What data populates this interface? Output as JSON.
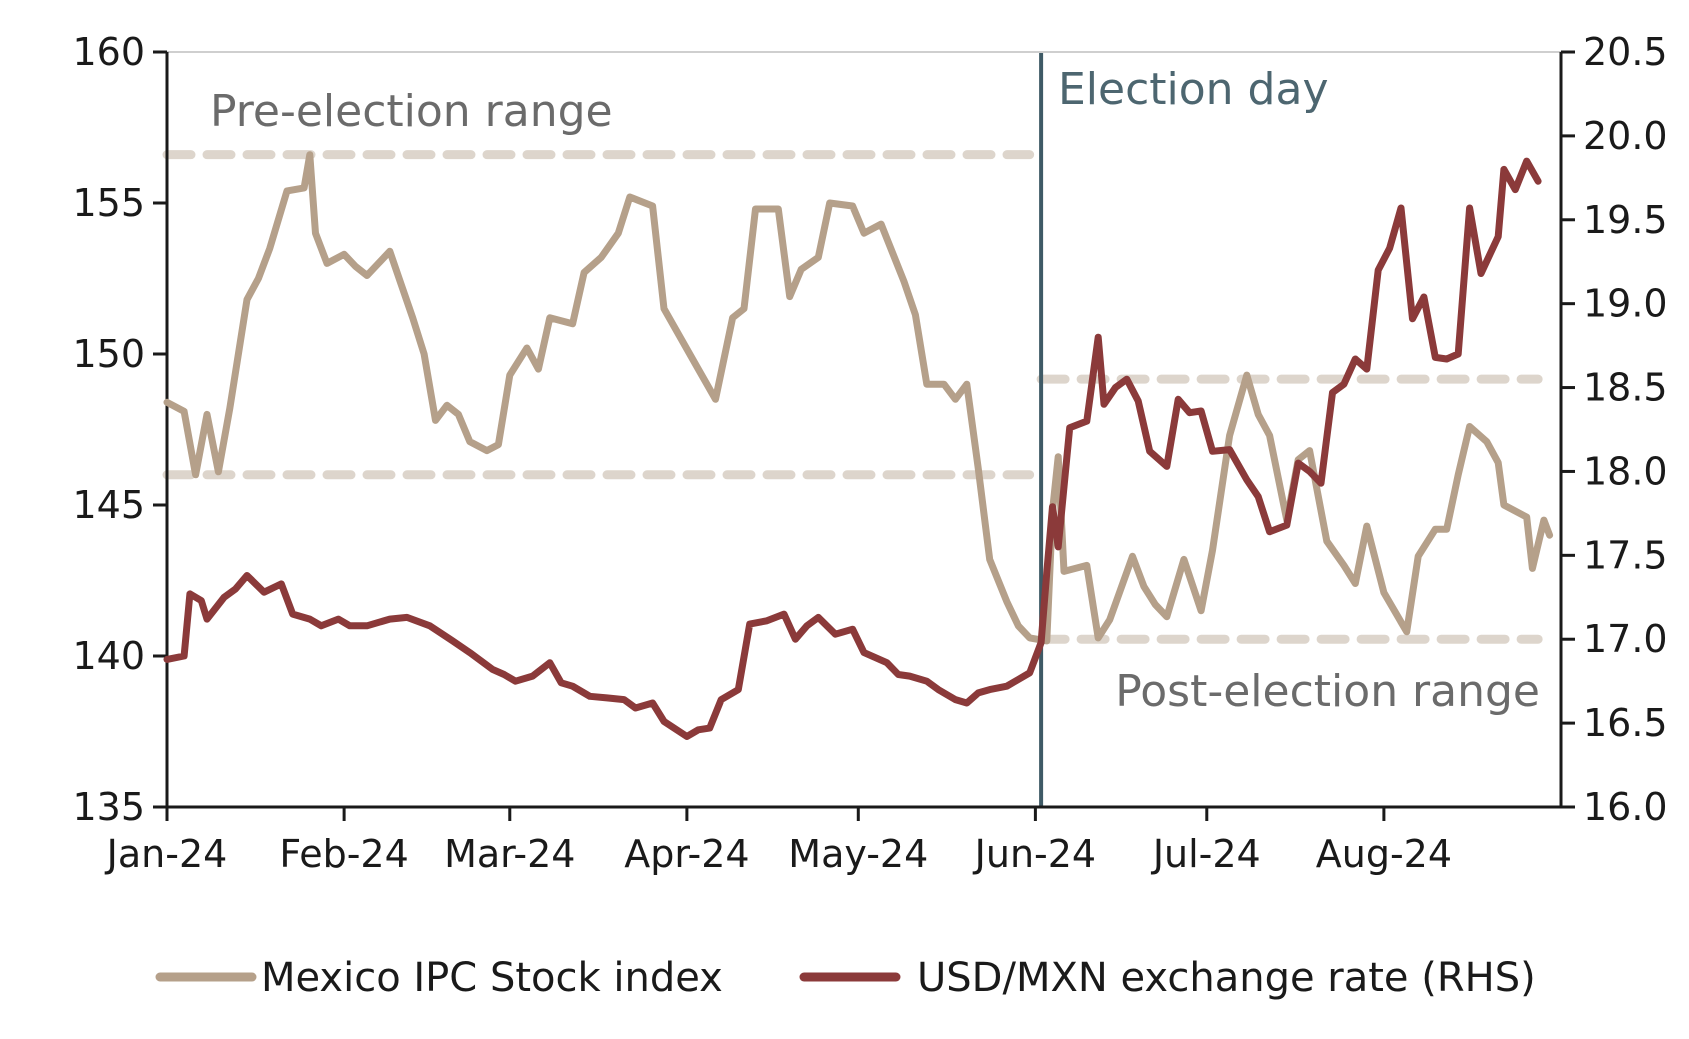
{
  "chart_data": {
    "type": "line",
    "x_labels": [
      "Jan-24",
      "Feb-24",
      "Mar-24",
      "Apr-24",
      "May-24",
      "Jun-24",
      "Jul-24",
      "Aug-24"
    ],
    "y_left": {
      "min": 135,
      "max": 160,
      "ticks": [
        "135",
        "140",
        "145",
        "150",
        "155",
        "160"
      ]
    },
    "y_right": {
      "min": 16.0,
      "max": 20.5,
      "ticks": [
        "16.0",
        "16.5",
        "17.0",
        "17.5",
        "18.0",
        "18.5",
        "19.0",
        "19.5",
        "20.0",
        "20.5"
      ]
    },
    "annotations": {
      "pre_election": "Pre-election range",
      "election_day": "Election day",
      "post_election": "Post-election range"
    },
    "series": [
      {
        "name": "Mexico IPC Stock index",
        "axis": "left",
        "color": "#b5a08a",
        "points": [
          [
            "2024-01-01",
            148.4
          ],
          [
            "2024-01-04",
            148.1
          ],
          [
            "2024-01-06",
            146.0
          ],
          [
            "2024-01-08",
            148.0
          ],
          [
            "2024-01-10",
            146.1
          ],
          [
            "2024-01-12",
            148.2
          ],
          [
            "2024-01-15",
            151.8
          ],
          [
            "2024-01-17",
            152.5
          ],
          [
            "2024-01-19",
            153.5
          ],
          [
            "2024-01-22",
            155.4
          ],
          [
            "2024-01-25",
            155.5
          ],
          [
            "2024-01-26",
            156.6
          ],
          [
            "2024-01-27",
            154.0
          ],
          [
            "2024-01-29",
            153.0
          ],
          [
            "2024-02-01",
            153.3
          ],
          [
            "2024-02-03",
            152.9
          ],
          [
            "2024-02-05",
            152.6
          ],
          [
            "2024-02-07",
            153.0
          ],
          [
            "2024-02-09",
            153.4
          ],
          [
            "2024-02-11",
            152.3
          ],
          [
            "2024-02-13",
            151.2
          ],
          [
            "2024-02-15",
            150.0
          ],
          [
            "2024-02-17",
            147.8
          ],
          [
            "2024-02-19",
            148.3
          ],
          [
            "2024-02-21",
            148.0
          ],
          [
            "2024-02-23",
            147.1
          ],
          [
            "2024-02-26",
            146.8
          ],
          [
            "2024-02-28",
            147.0
          ],
          [
            "2024-03-01",
            149.3
          ],
          [
            "2024-03-04",
            150.2
          ],
          [
            "2024-03-06",
            149.5
          ],
          [
            "2024-03-08",
            151.2
          ],
          [
            "2024-03-12",
            151.0
          ],
          [
            "2024-03-14",
            152.7
          ],
          [
            "2024-03-17",
            153.2
          ],
          [
            "2024-03-20",
            154.0
          ],
          [
            "2024-03-22",
            155.2
          ],
          [
            "2024-03-26",
            154.9
          ],
          [
            "2024-03-28",
            151.5
          ],
          [
            "2024-04-03",
            149.5
          ],
          [
            "2024-04-06",
            148.5
          ],
          [
            "2024-04-09",
            151.2
          ],
          [
            "2024-04-11",
            151.5
          ],
          [
            "2024-04-13",
            154.8
          ],
          [
            "2024-04-17",
            154.8
          ],
          [
            "2024-04-19",
            151.9
          ],
          [
            "2024-04-21",
            152.8
          ],
          [
            "2024-04-24",
            153.2
          ],
          [
            "2024-04-26",
            155.0
          ],
          [
            "2024-04-30",
            154.9
          ],
          [
            "2024-05-02",
            154.0
          ],
          [
            "2024-05-05",
            154.3
          ],
          [
            "2024-05-09",
            152.4
          ],
          [
            "2024-05-11",
            151.3
          ],
          [
            "2024-05-13",
            149.0
          ],
          [
            "2024-05-16",
            149.0
          ],
          [
            "2024-05-18",
            148.5
          ],
          [
            "2024-05-20",
            149.0
          ],
          [
            "2024-05-22",
            146.2
          ],
          [
            "2024-05-24",
            143.2
          ],
          [
            "2024-05-27",
            141.8
          ],
          [
            "2024-05-29",
            141.0
          ],
          [
            "2024-05-31",
            140.6
          ],
          [
            "2024-06-03",
            140.5
          ],
          [
            "2024-06-04",
            144.8
          ],
          [
            "2024-06-05",
            146.6
          ],
          [
            "2024-06-06",
            142.8
          ],
          [
            "2024-06-10",
            143.0
          ],
          [
            "2024-06-12",
            140.6
          ],
          [
            "2024-06-14",
            141.2
          ],
          [
            "2024-06-18",
            143.3
          ],
          [
            "2024-06-20",
            142.3
          ],
          [
            "2024-06-22",
            141.7
          ],
          [
            "2024-06-24",
            141.3
          ],
          [
            "2024-06-27",
            143.2
          ],
          [
            "2024-06-30",
            141.5
          ],
          [
            "2024-07-02",
            143.5
          ],
          [
            "2024-07-05",
            147.3
          ],
          [
            "2024-07-08",
            149.3
          ],
          [
            "2024-07-10",
            148.0
          ],
          [
            "2024-07-12",
            147.3
          ],
          [
            "2024-07-15",
            144.5
          ],
          [
            "2024-07-17",
            146.5
          ],
          [
            "2024-07-19",
            146.8
          ],
          [
            "2024-07-22",
            143.8
          ],
          [
            "2024-07-25",
            143.0
          ],
          [
            "2024-07-27",
            142.4
          ],
          [
            "2024-07-29",
            144.3
          ],
          [
            "2024-08-01",
            142.1
          ],
          [
            "2024-08-05",
            140.8
          ],
          [
            "2024-08-07",
            143.3
          ],
          [
            "2024-08-10",
            144.2
          ],
          [
            "2024-08-12",
            144.2
          ],
          [
            "2024-08-14",
            146.0
          ],
          [
            "2024-08-16",
            147.6
          ],
          [
            "2024-08-19",
            147.1
          ],
          [
            "2024-08-21",
            146.4
          ],
          [
            "2024-08-22",
            145.0
          ],
          [
            "2024-08-26",
            144.6
          ],
          [
            "2024-08-27",
            142.9
          ],
          [
            "2024-08-29",
            144.5
          ],
          [
            "2024-08-30",
            144.0
          ]
        ]
      },
      {
        "name": "USD/MXN exchange rate (RHS)",
        "axis": "right",
        "color": "#8b3a3a",
        "points": [
          [
            "2024-01-01",
            16.88
          ],
          [
            "2024-01-04",
            16.9
          ],
          [
            "2024-01-05",
            17.27
          ],
          [
            "2024-01-07",
            17.23
          ],
          [
            "2024-01-08",
            17.12
          ],
          [
            "2024-01-11",
            17.25
          ],
          [
            "2024-01-13",
            17.3
          ],
          [
            "2024-01-15",
            17.38
          ],
          [
            "2024-01-18",
            17.28
          ],
          [
            "2024-01-21",
            17.33
          ],
          [
            "2024-01-23",
            17.15
          ],
          [
            "2024-01-26",
            17.12
          ],
          [
            "2024-01-28",
            17.08
          ],
          [
            "2024-01-31",
            17.12
          ],
          [
            "2024-02-02",
            17.08
          ],
          [
            "2024-02-05",
            17.08
          ],
          [
            "2024-02-09",
            17.12
          ],
          [
            "2024-02-12",
            17.13
          ],
          [
            "2024-02-16",
            17.08
          ],
          [
            "2024-02-20",
            16.99
          ],
          [
            "2024-02-23",
            16.92
          ],
          [
            "2024-02-27",
            16.82
          ],
          [
            "2024-02-29",
            16.79
          ],
          [
            "2024-03-02",
            16.75
          ],
          [
            "2024-03-05",
            16.78
          ],
          [
            "2024-03-08",
            16.86
          ],
          [
            "2024-03-10",
            16.74
          ],
          [
            "2024-03-12",
            16.72
          ],
          [
            "2024-03-15",
            16.66
          ],
          [
            "2024-03-18",
            16.65
          ],
          [
            "2024-03-21",
            16.64
          ],
          [
            "2024-03-23",
            16.59
          ],
          [
            "2024-03-26",
            16.62
          ],
          [
            "2024-03-28",
            16.51
          ],
          [
            "2024-04-01",
            16.42
          ],
          [
            "2024-04-03",
            16.46
          ],
          [
            "2024-04-05",
            16.47
          ],
          [
            "2024-04-07",
            16.64
          ],
          [
            "2024-04-10",
            16.7
          ],
          [
            "2024-04-12",
            17.09
          ],
          [
            "2024-04-15",
            17.11
          ],
          [
            "2024-04-18",
            17.15
          ],
          [
            "2024-04-20",
            17.0
          ],
          [
            "2024-04-22",
            17.08
          ],
          [
            "2024-04-24",
            17.13
          ],
          [
            "2024-04-27",
            17.03
          ],
          [
            "2024-04-30",
            17.06
          ],
          [
            "2024-05-02",
            16.92
          ],
          [
            "2024-05-06",
            16.86
          ],
          [
            "2024-05-08",
            16.79
          ],
          [
            "2024-05-10",
            16.78
          ],
          [
            "2024-05-13",
            16.75
          ],
          [
            "2024-05-15",
            16.7
          ],
          [
            "2024-05-18",
            16.64
          ],
          [
            "2024-05-20",
            16.62
          ],
          [
            "2024-05-22",
            16.68
          ],
          [
            "2024-05-24",
            16.7
          ],
          [
            "2024-05-27",
            16.72
          ],
          [
            "2024-05-29",
            16.76
          ],
          [
            "2024-05-31",
            16.8
          ],
          [
            "2024-06-02",
            16.98
          ],
          [
            "2024-06-03",
            17.4
          ],
          [
            "2024-06-04",
            17.79
          ],
          [
            "2024-06-05",
            17.55
          ],
          [
            "2024-06-07",
            18.26
          ],
          [
            "2024-06-10",
            18.3
          ],
          [
            "2024-06-12",
            18.8
          ],
          [
            "2024-06-13",
            18.4
          ],
          [
            "2024-06-15",
            18.5
          ],
          [
            "2024-06-17",
            18.55
          ],
          [
            "2024-06-19",
            18.42
          ],
          [
            "2024-06-21",
            18.12
          ],
          [
            "2024-06-24",
            18.03
          ],
          [
            "2024-06-26",
            18.43
          ],
          [
            "2024-06-28",
            18.35
          ],
          [
            "2024-06-30",
            18.36
          ],
          [
            "2024-07-02",
            18.12
          ],
          [
            "2024-07-05",
            18.13
          ],
          [
            "2024-07-08",
            17.95
          ],
          [
            "2024-07-10",
            17.85
          ],
          [
            "2024-07-12",
            17.64
          ],
          [
            "2024-07-15",
            17.68
          ],
          [
            "2024-07-17",
            18.05
          ],
          [
            "2024-07-19",
            18.0
          ],
          [
            "2024-07-21",
            17.93
          ],
          [
            "2024-07-23",
            18.47
          ],
          [
            "2024-07-25",
            18.52
          ],
          [
            "2024-07-27",
            18.67
          ],
          [
            "2024-07-29",
            18.61
          ],
          [
            "2024-07-31",
            19.2
          ],
          [
            "2024-08-02",
            19.33
          ],
          [
            "2024-08-04",
            19.57
          ],
          [
            "2024-08-06",
            18.91
          ],
          [
            "2024-08-08",
            19.04
          ],
          [
            "2024-08-10",
            18.68
          ],
          [
            "2024-08-12",
            18.67
          ],
          [
            "2024-08-14",
            18.7
          ],
          [
            "2024-08-16",
            19.57
          ],
          [
            "2024-08-18",
            19.18
          ],
          [
            "2024-08-21",
            19.4
          ],
          [
            "2024-08-22",
            19.8
          ],
          [
            "2024-08-24",
            19.68
          ],
          [
            "2024-08-26",
            19.85
          ],
          [
            "2024-08-28",
            19.73
          ]
        ]
      }
    ],
    "reference_lines": [
      {
        "axis": "left",
        "value": 156.6,
        "from": "2024-01-01",
        "to": "2024-05-31",
        "style": "dashed",
        "color": "#ddd5cc"
      },
      {
        "axis": "left",
        "value": 146.0,
        "from": "2024-01-01",
        "to": "2024-05-31",
        "style": "dashed",
        "color": "#ddd5cc"
      },
      {
        "axis": "right",
        "value": 18.55,
        "from": "2024-06-02",
        "to": "2024-08-28",
        "style": "dashed",
        "color": "#ddd5cc"
      },
      {
        "axis": "right",
        "value": 17.0,
        "from": "2024-06-02",
        "to": "2024-08-28",
        "style": "dashed",
        "color": "#ddd5cc"
      }
    ],
    "election_day": "2024-06-02",
    "election_line_color": "#3f5a66",
    "legend": {
      "position": "bottom",
      "items": [
        "Mexico IPC Stock index",
        "USD/MXN exchange rate (RHS)"
      ]
    },
    "grid": false
  }
}
